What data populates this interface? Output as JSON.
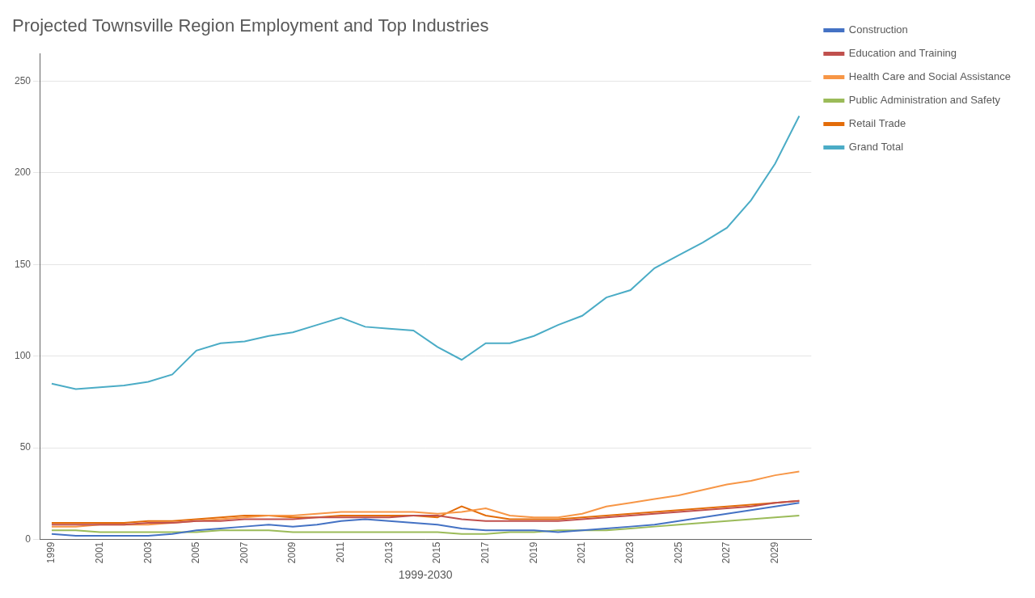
{
  "chart_data": {
    "type": "line",
    "title": "Projected Townsville Region Employment and Top Industries",
    "xlabel": "1999-2030",
    "x": [
      1999,
      2000,
      2001,
      2002,
      2003,
      2004,
      2005,
      2006,
      2007,
      2008,
      2009,
      2010,
      2011,
      2012,
      2013,
      2014,
      2015,
      2016,
      2017,
      2018,
      2019,
      2020,
      2021,
      2022,
      2023,
      2024,
      2025,
      2026,
      2027,
      2028,
      2029,
      2030
    ],
    "series": [
      {
        "name": "Construction",
        "color": "#4472C4",
        "values": [
          3,
          2,
          2,
          2,
          2,
          3,
          5,
          6,
          7,
          8,
          7,
          8,
          10,
          11,
          10,
          9,
          8,
          6,
          5,
          5,
          5,
          4,
          5,
          6,
          7,
          8,
          10,
          12,
          14,
          16,
          18,
          20
        ]
      },
      {
        "name": "Education and Training",
        "color": "#C0504D",
        "values": [
          8,
          8,
          8,
          8,
          9,
          9,
          10,
          10,
          11,
          11,
          11,
          12,
          12,
          12,
          12,
          13,
          13,
          11,
          10,
          10,
          10,
          10,
          11,
          12,
          13,
          14,
          15,
          16,
          17,
          18,
          20,
          21
        ]
      },
      {
        "name": "Health Care and Social Assistance",
        "color": "#F79646",
        "values": [
          7,
          7,
          8,
          8,
          8,
          9,
          10,
          11,
          12,
          13,
          13,
          14,
          15,
          15,
          15,
          15,
          14,
          15,
          17,
          13,
          12,
          12,
          14,
          18,
          20,
          22,
          24,
          27,
          30,
          32,
          35,
          37
        ]
      },
      {
        "name": "Public Administration and Safety",
        "color": "#9BBB59",
        "values": [
          5,
          5,
          4,
          4,
          4,
          4,
          4,
          5,
          5,
          5,
          4,
          4,
          4,
          4,
          4,
          4,
          4,
          3,
          3,
          4,
          4,
          5,
          5,
          5,
          6,
          7,
          8,
          9,
          10,
          11,
          12,
          13
        ]
      },
      {
        "name": "Retail Trade",
        "color": "#E36C09",
        "values": [
          9,
          9,
          9,
          9,
          10,
          10,
          11,
          12,
          13,
          13,
          12,
          12,
          13,
          13,
          13,
          13,
          12,
          18,
          13,
          11,
          11,
          11,
          12,
          13,
          14,
          15,
          16,
          17,
          18,
          19,
          20,
          21
        ]
      },
      {
        "name": "Grand Total",
        "color": "#4BACC6",
        "values": [
          85,
          82,
          83,
          84,
          86,
          90,
          103,
          107,
          108,
          111,
          113,
          117,
          121,
          116,
          115,
          114,
          105,
          98,
          107,
          107,
          111,
          117,
          122,
          132,
          136,
          148,
          155,
          162,
          170,
          185,
          205,
          231
        ]
      }
    ],
    "xlim": [
      1998.5,
      2030.5
    ],
    "xticks": [
      1999,
      2001,
      2003,
      2005,
      2007,
      2009,
      2011,
      2013,
      2015,
      2017,
      2019,
      2021,
      2023,
      2025,
      2027,
      2029
    ],
    "ylim": [
      0,
      265
    ],
    "yticks": [
      0,
      50,
      100,
      150,
      200,
      250
    ],
    "grid": "y",
    "legend": "right"
  }
}
